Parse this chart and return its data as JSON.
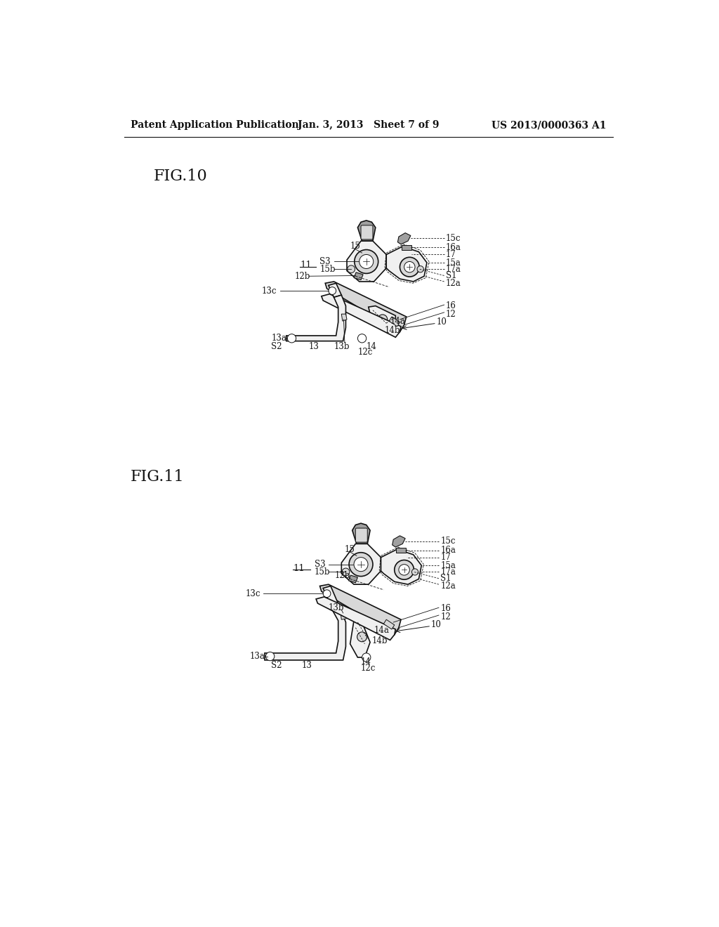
{
  "page_width": 10.24,
  "page_height": 13.2,
  "bg_color": "#ffffff",
  "header_left": "Patent Application Publication",
  "header_center": "Jan. 3, 2013   Sheet 7 of 9",
  "header_right": "US 2013/0000363 A1",
  "fig10_label": "FIG.10",
  "fig11_label": "FIG.11",
  "line_color": "#111111",
  "fill_light": "#f0f0f0",
  "fill_mid": "#d8d8d8",
  "fill_dark": "#a0a0a0",
  "fill_darkest": "#606060"
}
